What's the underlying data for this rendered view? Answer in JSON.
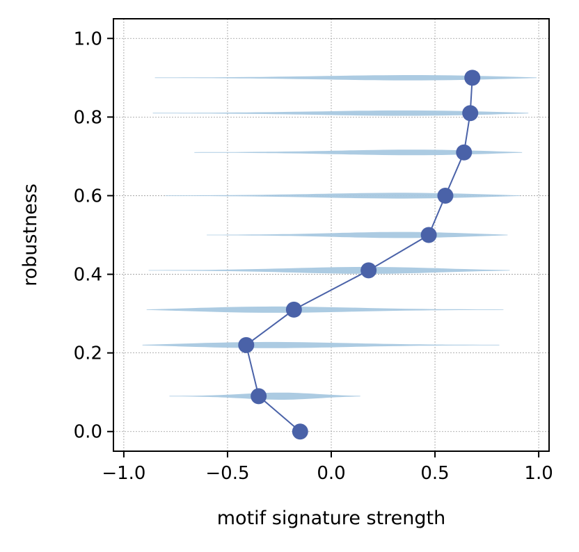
{
  "chart_data": {
    "type": "scatter",
    "title": "",
    "xlabel": "motif signature strength",
    "ylabel": "robustness",
    "xlim": [
      -1.05,
      1.05
    ],
    "ylim": [
      -0.05,
      1.05
    ],
    "xticks": [
      -1.0,
      -0.5,
      0.0,
      0.5,
      1.0
    ],
    "xtick_labels": [
      "−1.0",
      "−0.5",
      "0.0",
      "0.5",
      "1.0"
    ],
    "yticks": [
      0.0,
      0.2,
      0.4,
      0.6,
      0.8,
      1.0
    ],
    "ytick_labels": [
      "0.0",
      "0.2",
      "0.4",
      "0.6",
      "0.8",
      "1.0"
    ],
    "grid": true,
    "colors": {
      "line": "#4a62a8",
      "marker": "#4a62a8",
      "violin": "#a8c8e0",
      "grid": "#999999"
    },
    "series": [
      {
        "points": [
          {
            "x": -0.15,
            "y": 0.0
          },
          {
            "x": -0.35,
            "y": 0.09
          },
          {
            "x": -0.41,
            "y": 0.22
          },
          {
            "x": -0.18,
            "y": 0.31
          },
          {
            "x": 0.18,
            "y": 0.41
          },
          {
            "x": 0.47,
            "y": 0.5
          },
          {
            "x": 0.55,
            "y": 0.6
          },
          {
            "x": 0.64,
            "y": 0.71
          },
          {
            "x": 0.67,
            "y": 0.81
          },
          {
            "x": 0.68,
            "y": 0.9
          }
        ]
      }
    ],
    "violins": [
      {
        "y": 0.09,
        "min": -0.78,
        "max": 0.14,
        "peak": -0.2
      },
      {
        "y": 0.22,
        "min": -0.91,
        "max": 0.81,
        "peak": -0.55
      },
      {
        "y": 0.31,
        "min": -0.89,
        "max": 0.83,
        "peak": -0.5
      },
      {
        "y": 0.41,
        "min": -0.88,
        "max": 0.86,
        "peak": 0.3
      },
      {
        "y": 0.5,
        "min": -0.6,
        "max": 0.85,
        "peak": 0.55
      },
      {
        "y": 0.6,
        "min": -0.8,
        "max": 0.91,
        "peak": 0.65
      },
      {
        "y": 0.71,
        "min": -0.66,
        "max": 0.92,
        "peak": 0.72
      },
      {
        "y": 0.81,
        "min": -0.86,
        "max": 0.95,
        "peak": 0.78
      },
      {
        "y": 0.9,
        "min": -0.85,
        "max": 0.99,
        "peak": 0.82
      }
    ]
  }
}
